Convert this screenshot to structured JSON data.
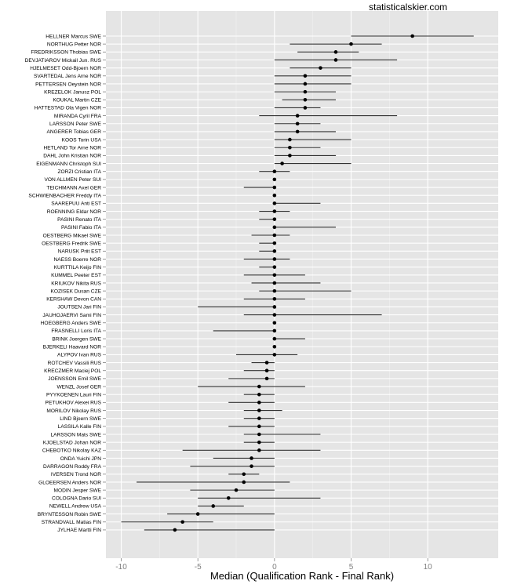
{
  "watermark": "statisticalskier.com",
  "chart_data": {
    "type": "scatter",
    "subtype": "point-range (median with interval)",
    "title": "",
    "xlabel": "Median (Qualification Rank - Final Rank)",
    "ylabel": "",
    "xlim": [
      -11,
      14.6
    ],
    "xticks": [
      -10,
      -5,
      0,
      5,
      10
    ],
    "grid": true,
    "colors": {
      "panel": "#e5e5e5",
      "grid_major": "#ffffff",
      "grid_minor": "#f2f2f2",
      "point": "#000000",
      "range": "#333333",
      "tick_label": "#7f7f7f"
    },
    "series": [
      {
        "items": [
          {
            "label": "HELLNER Marcus SWE",
            "median": 9,
            "low": 5,
            "high": 13
          },
          {
            "label": "NORTHUG Petter NOR",
            "median": 5,
            "low": 1,
            "high": 7
          },
          {
            "label": "FREDRIKSSON Thobias SWE",
            "median": 4,
            "low": 1.5,
            "high": 5.5
          },
          {
            "label": "DEVJATIAROV Mickail Jun. RUS",
            "median": 4,
            "low": 0,
            "high": 8
          },
          {
            "label": "HJELMESET Odd-Bjoern NOR",
            "median": 3,
            "low": 1,
            "high": 5
          },
          {
            "label": "SVARTEDAL Jens Arne NOR",
            "median": 2,
            "low": 0,
            "high": 5
          },
          {
            "label": "PETTERSEN Oeystein NOR",
            "median": 2,
            "low": 0,
            "high": 5
          },
          {
            "label": "KREZELOK Janusz POL",
            "median": 2,
            "low": 0,
            "high": 4
          },
          {
            "label": "KOUKAL Martin CZE",
            "median": 2,
            "low": 0.5,
            "high": 4
          },
          {
            "label": "HATTESTAD Ola Vigen NOR",
            "median": 2,
            "low": 0,
            "high": 3
          },
          {
            "label": "MIRANDA Cyril FRA",
            "median": 1.5,
            "low": -1,
            "high": 8
          },
          {
            "label": "LARSSON Peter SWE",
            "median": 1.5,
            "low": 0,
            "high": 3
          },
          {
            "label": "ANGERER Tobias GER",
            "median": 1.5,
            "low": 0,
            "high": 4
          },
          {
            "label": "KOOS Torin USA",
            "median": 1,
            "low": 0,
            "high": 5
          },
          {
            "label": "HETLAND Tor Arne NOR",
            "median": 1,
            "low": 0,
            "high": 3
          },
          {
            "label": "DAHL John Kristian NOR",
            "median": 1,
            "low": 0,
            "high": 4
          },
          {
            "label": "EIGENMANN Christoph SUI",
            "median": 0.5,
            "low": 0,
            "high": 5
          },
          {
            "label": "ZORZI Cristian ITA",
            "median": 0,
            "low": -1,
            "high": 1
          },
          {
            "label": "VON ALLMEN Peter SUI",
            "median": 0,
            "low": 0,
            "high": 0
          },
          {
            "label": "TEICHMANN Axel GER",
            "median": 0,
            "low": -2,
            "high": 0
          },
          {
            "label": "SCHWIENBACHER Freddy ITA",
            "median": 0,
            "low": 0,
            "high": 0
          },
          {
            "label": "SAAREPUU Anti EST",
            "median": 0,
            "low": 0,
            "high": 3
          },
          {
            "label": "ROENNING Eldar NOR",
            "median": 0,
            "low": -1,
            "high": 1
          },
          {
            "label": "PASINI Renato ITA",
            "median": 0,
            "low": -1,
            "high": 0
          },
          {
            "label": "PASINI Fabio ITA",
            "median": 0,
            "low": 0,
            "high": 4
          },
          {
            "label": "OESTBERG Mikael SWE",
            "median": 0,
            "low": -1.5,
            "high": 1
          },
          {
            "label": "OESTBERG Fredrik SWE",
            "median": 0,
            "low": -1,
            "high": 0
          },
          {
            "label": "NARUSK Priit EST",
            "median": 0,
            "low": -1,
            "high": 0
          },
          {
            "label": "NAESS Boerre NOR",
            "median": 0,
            "low": -2,
            "high": 1
          },
          {
            "label": "KURTTILA Keijo FIN",
            "median": 0,
            "low": -1,
            "high": 0
          },
          {
            "label": "KUMMEL Peeter EST",
            "median": 0,
            "low": -2,
            "high": 2
          },
          {
            "label": "KRIUKOV Nikita RUS",
            "median": 0,
            "low": -1.5,
            "high": 3
          },
          {
            "label": "KOZISEK Dusan CZE",
            "median": 0,
            "low": -1,
            "high": 5
          },
          {
            "label": "KERSHAW Devon CAN",
            "median": 0,
            "low": -2,
            "high": 2
          },
          {
            "label": "JOUTSEN Jari FIN",
            "median": 0,
            "low": -5,
            "high": 0
          },
          {
            "label": "JAUHOJAERVI Sami FIN",
            "median": 0,
            "low": -2,
            "high": 7
          },
          {
            "label": "HOEGBERG Anders SWE",
            "median": 0,
            "low": 0,
            "high": 0
          },
          {
            "label": "FRASNELLI Loris ITA",
            "median": 0,
            "low": -4,
            "high": 0
          },
          {
            "label": "BRINK Joergen SWE",
            "median": 0,
            "low": 0,
            "high": 2
          },
          {
            "label": "BJERKELI Haavard NOR",
            "median": 0,
            "low": 0,
            "high": 0
          },
          {
            "label": "ALYPOV Ivan RUS",
            "median": 0,
            "low": -2.5,
            "high": 1.5
          },
          {
            "label": "ROTCHEV Vassili RUS",
            "median": -0.5,
            "low": -1.5,
            "high": 0
          },
          {
            "label": "KRECZMER Maciej POL",
            "median": -0.5,
            "low": -2,
            "high": 0
          },
          {
            "label": "JOENSSON Emil SWE",
            "median": -0.5,
            "low": -3,
            "high": 0
          },
          {
            "label": "WENZL Josef GER",
            "median": -1,
            "low": -5,
            "high": 2
          },
          {
            "label": "PYYKOENEN Lauri FIN",
            "median": -1,
            "low": -2,
            "high": 0
          },
          {
            "label": "PETUKHOV Alexei RUS",
            "median": -1,
            "low": -3,
            "high": 0
          },
          {
            "label": "MORILOV Nikolay RUS",
            "median": -1,
            "low": -2,
            "high": 0.5
          },
          {
            "label": "LIND Bjoern SWE",
            "median": -1,
            "low": -2,
            "high": 0
          },
          {
            "label": "LASSILA Kalle FIN",
            "median": -1,
            "low": -3,
            "high": 0
          },
          {
            "label": "LARSSON Mats SWE",
            "median": -1,
            "low": -2,
            "high": 3
          },
          {
            "label": "KJOELSTAD Johan NOR",
            "median": -1,
            "low": -2,
            "high": 0
          },
          {
            "label": "CHEBOTKO Nikolay KAZ",
            "median": -1,
            "low": -6,
            "high": 3
          },
          {
            "label": "ONDA Yuichi JPN",
            "median": -1.5,
            "low": -4,
            "high": 0
          },
          {
            "label": "DARRAGON Roddy FRA",
            "median": -1.5,
            "low": -5.5,
            "high": 0
          },
          {
            "label": "IVERSEN Trond NOR",
            "median": -2,
            "low": -3,
            "high": -1
          },
          {
            "label": "GLOEERSEN Anders NOR",
            "median": -2,
            "low": -9,
            "high": 1
          },
          {
            "label": "MODIN Jesper SWE",
            "median": -2.5,
            "low": -5.5,
            "high": 0
          },
          {
            "label": "COLOGNA Dario SUI",
            "median": -3,
            "low": -5,
            "high": 3
          },
          {
            "label": "NEWELL Andrew USA",
            "median": -4,
            "low": -5,
            "high": -2
          },
          {
            "label": "BRYNTESSON Robin SWE",
            "median": -5,
            "low": -7,
            "high": 0
          },
          {
            "label": "STRANDVALL Matias FIN",
            "median": -6,
            "low": -10,
            "high": -4
          },
          {
            "label": "JYLHAE Martti FIN",
            "median": -6.5,
            "low": -8.5,
            "high": 0
          }
        ]
      }
    ]
  }
}
